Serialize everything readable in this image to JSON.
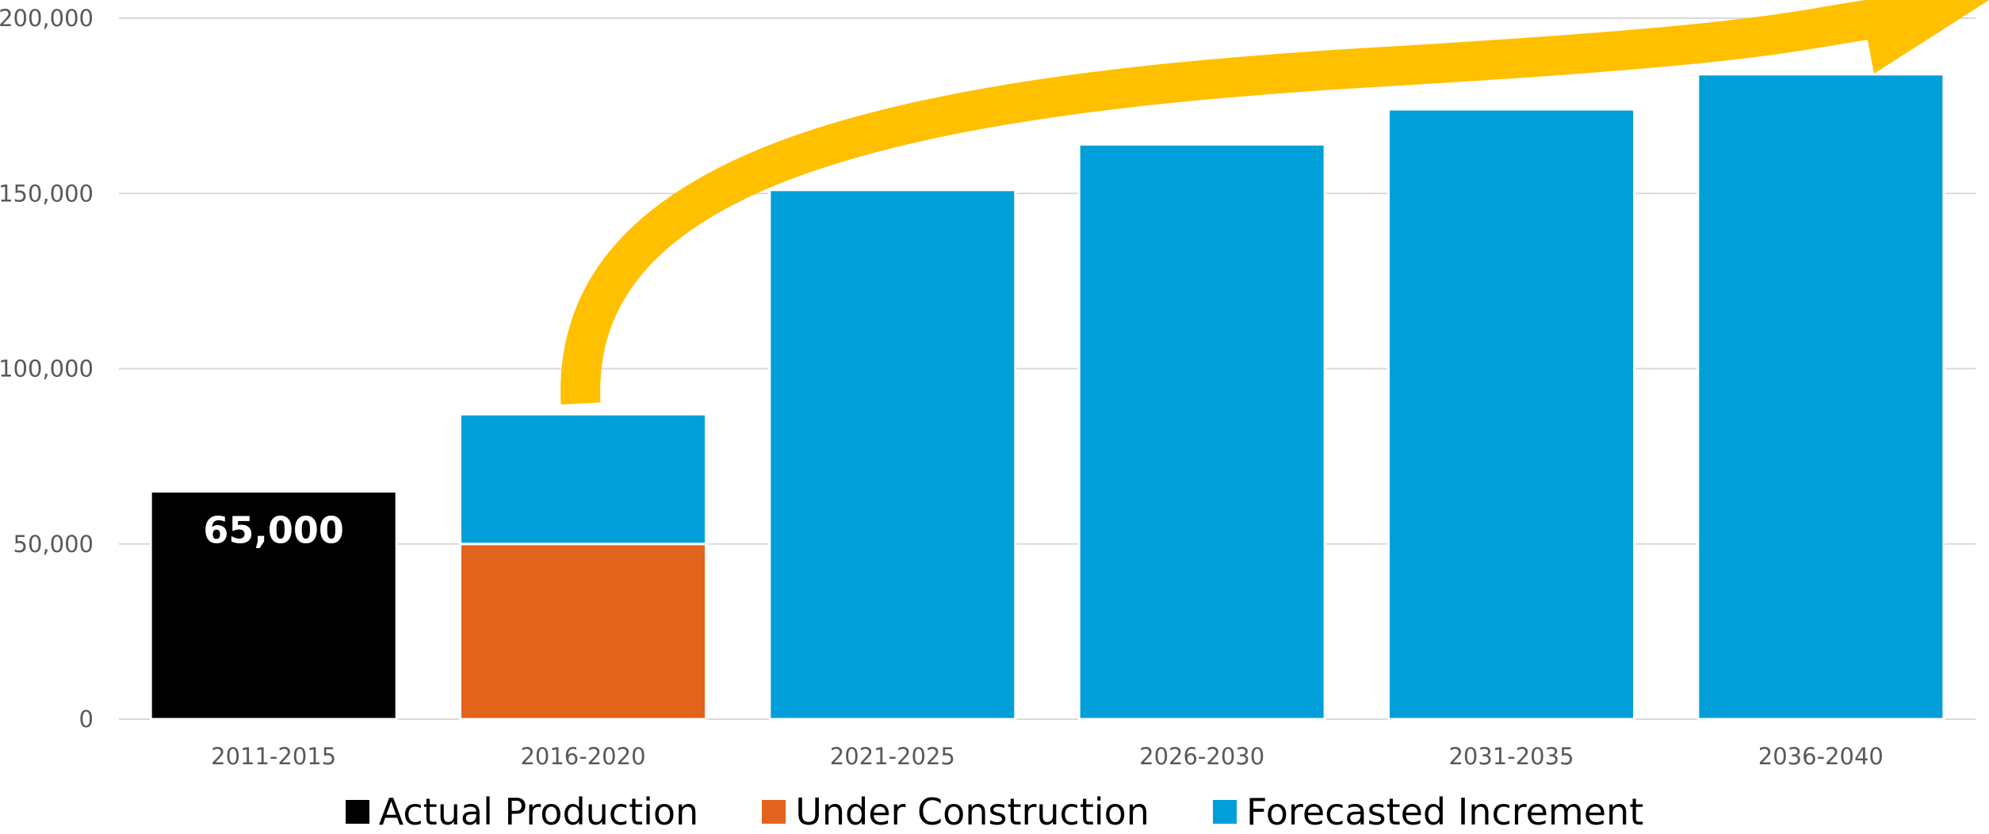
{
  "chart_data": {
    "type": "bar",
    "stacked": true,
    "categories": [
      "2011-2015",
      "2016-2020",
      "2021-2025",
      "2026-2030",
      "2031-2035",
      "2036-2040"
    ],
    "series": [
      {
        "name": "Actual Production",
        "color": "#000000",
        "values": [
          65000,
          0,
          0,
          0,
          0,
          0
        ]
      },
      {
        "name": "Under Construction",
        "color": "#E1631C",
        "values": [
          0,
          50000,
          0,
          0,
          0,
          0
        ]
      },
      {
        "name": "Forecasted Increment",
        "color": "#009FDA",
        "values": [
          0,
          37000,
          151000,
          164000,
          174000,
          184000
        ]
      }
    ],
    "data_labels": [
      {
        "category": "2011-2015",
        "text": "65,000"
      }
    ],
    "y_ticks": [
      "0",
      "50,000",
      "100,000",
      "150,000",
      "200,000"
    ],
    "ylim": [
      0,
      200000
    ],
    "grid": true,
    "legend_position": "bottom",
    "annotation": {
      "type": "arrow",
      "color": "#FFC000",
      "from_category": "2016-2020",
      "to_category": "2036-2040",
      "direction": "up-right"
    }
  }
}
